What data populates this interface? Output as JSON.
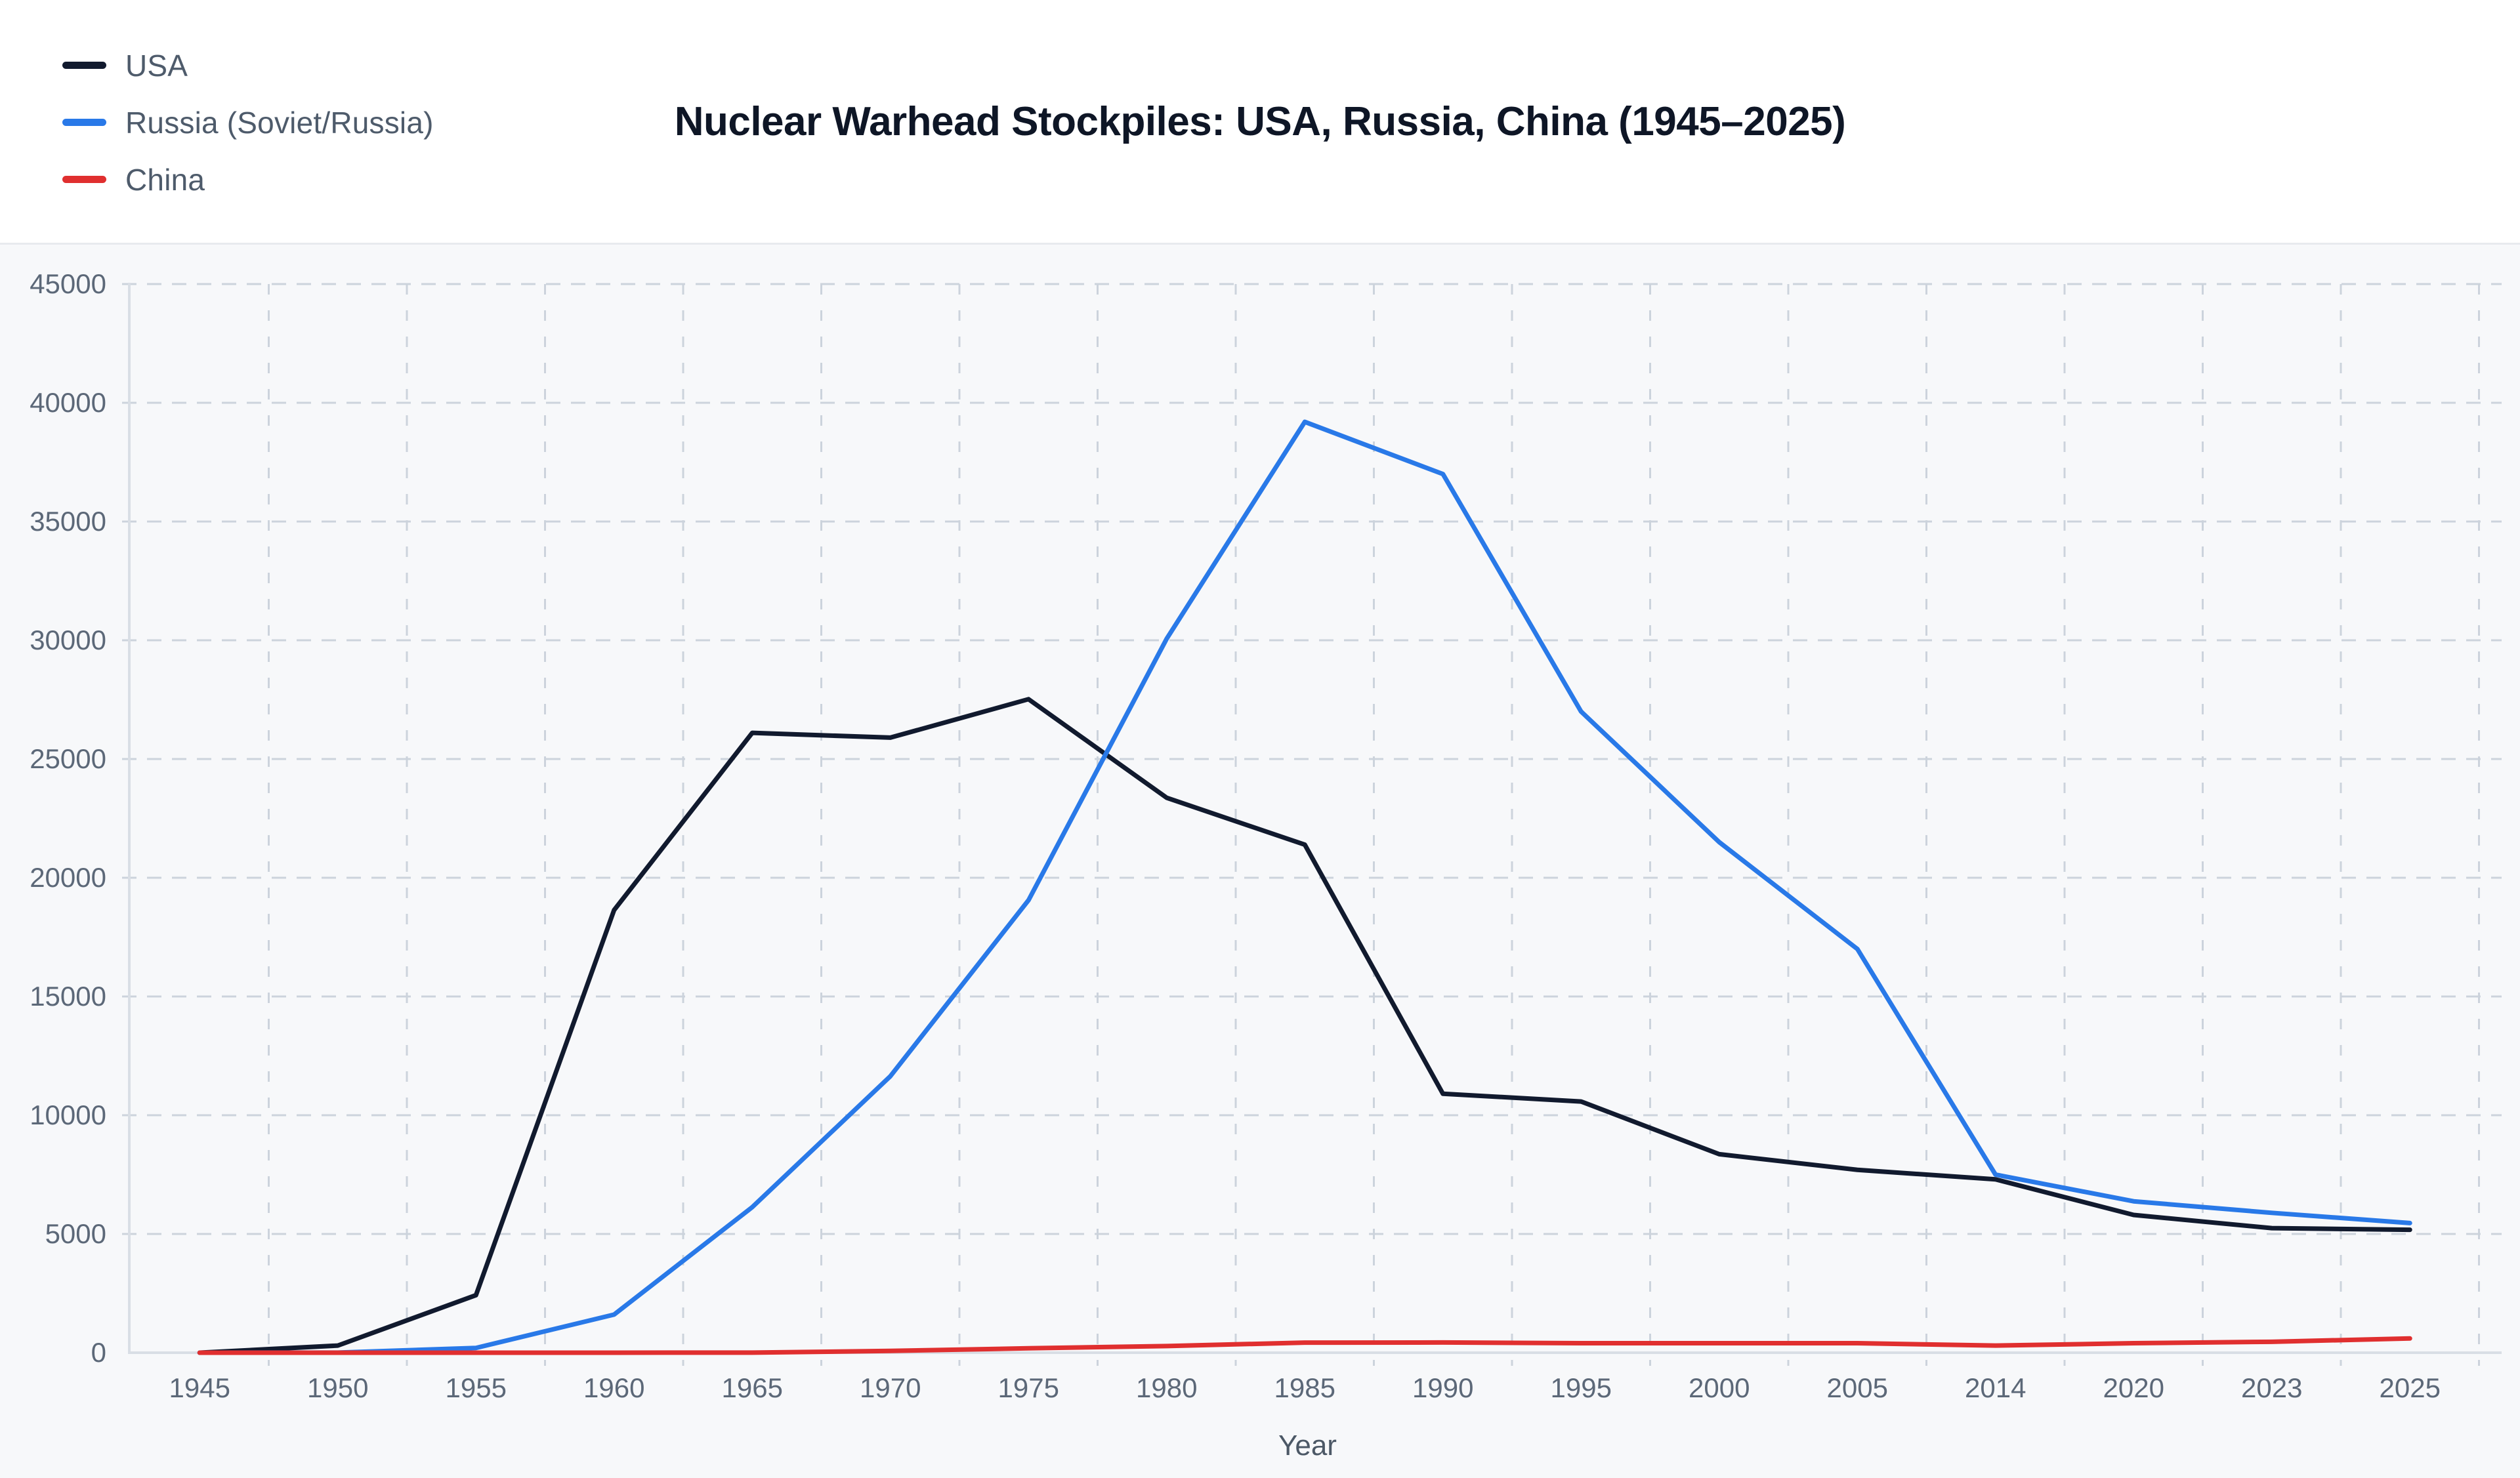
{
  "title": "Nuclear Warhead Stockpiles: USA, Russia, China (1945–2025)",
  "legend": [
    {
      "label": "USA",
      "color": "#111a2e"
    },
    {
      "label": "Russia (Soviet/Russia)",
      "color": "#2979e8"
    },
    {
      "label": "China",
      "color": "#e02f2f"
    }
  ],
  "colors": {
    "background": "#ffffff",
    "plot_background": "#f7f8fa",
    "gridline": "#ccd3dc",
    "axis_line": "#d9dee5",
    "tick_text": "#5c6878",
    "title_text": "#0e1626"
  },
  "chart_data": {
    "type": "line",
    "title": "Nuclear Warhead Stockpiles: USA, Russia, China (1945–2025)",
    "xlabel": "Year",
    "ylabel": "",
    "ylim": [
      0,
      45000
    ],
    "yticks": [
      0,
      5000,
      10000,
      15000,
      20000,
      25000,
      30000,
      35000,
      40000,
      45000
    ],
    "grid": true,
    "legend_position": "top-left",
    "categories": [
      "1945",
      "1950",
      "1955",
      "1960",
      "1965",
      "1970",
      "1975",
      "1980",
      "1985",
      "1990",
      "1995",
      "2000",
      "2005",
      "2014",
      "2020",
      "2023",
      "2025"
    ],
    "series": [
      {
        "name": "USA",
        "color": "#111a2e",
        "values": [
          0,
          300,
          2422,
          18638,
          26100,
          25900,
          27519,
          23368,
          21392,
          10904,
          10577,
          8360,
          7700,
          7300,
          5800,
          5244,
          5177
        ]
      },
      {
        "name": "Russia (Soviet/Russia)",
        "color": "#2979e8",
        "values": [
          0,
          5,
          200,
          1605,
          6129,
          11643,
          19055,
          30062,
          39197,
          37000,
          27000,
          21500,
          17000,
          7500,
          6375,
          5889,
          5459
        ]
      },
      {
        "name": "China",
        "color": "#e02f2f",
        "values": [
          0,
          0,
          0,
          0,
          5,
          75,
          185,
          280,
          425,
          430,
          400,
          400,
          400,
          300,
          400,
          460,
          600
        ]
      }
    ]
  }
}
